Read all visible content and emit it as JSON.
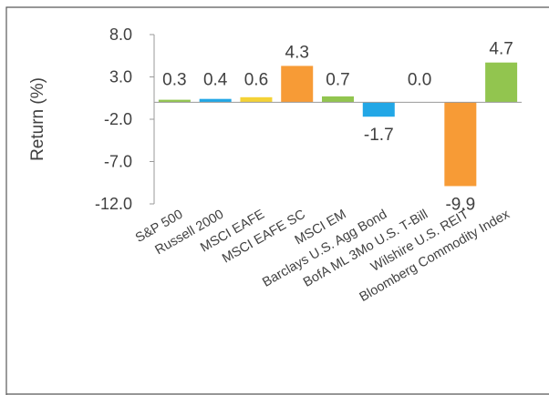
{
  "chart_data": {
    "type": "bar",
    "title": "",
    "xlabel": "",
    "ylabel": "Return (%)",
    "ylim": [
      -12.0,
      8.0
    ],
    "yticks": [
      "8.0",
      "3.0",
      "-2.0",
      "-7.0",
      "-12.0"
    ],
    "ytick_values": [
      8.0,
      3.0,
      -2.0,
      -7.0,
      -12.0
    ],
    "grid": false,
    "legend": "none",
    "categories": [
      "S&P 500",
      "Russell 2000",
      "MSCI EAFE",
      "MSCI EAFE SC",
      "MSCI EM",
      "Barclays U.S. Agg Bond",
      "BofA ML 3Mo U.S. T-Bill",
      "Wilshire U.S. REIT",
      "Bloomberg Commodity Index"
    ],
    "values": [
      0.3,
      0.4,
      0.6,
      4.3,
      0.7,
      -1.7,
      0.0,
      -9.9,
      4.7
    ],
    "value_labels": [
      "0.3",
      "0.4",
      "0.6",
      "4.3",
      "0.7",
      "-1.7",
      "0.0",
      "-9.9",
      "4.7"
    ],
    "colors": [
      "#92c54f",
      "#22a7e6",
      "#f4d236",
      "#f79b36",
      "#92c54f",
      "#22a7e6",
      "#f4d236",
      "#f79b36",
      "#92c54f"
    ]
  }
}
